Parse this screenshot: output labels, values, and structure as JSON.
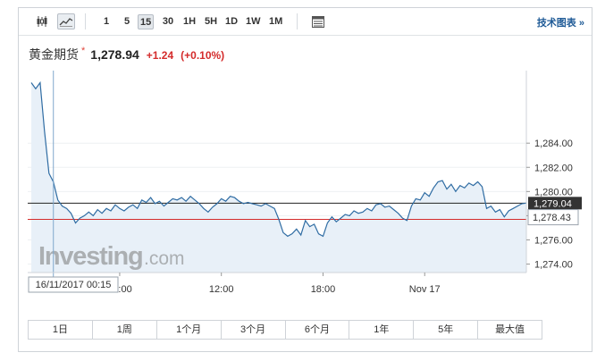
{
  "toolbar": {
    "chart_types": [
      {
        "name": "candlestick-icon",
        "active": false
      },
      {
        "name": "line-chart-icon",
        "active": true
      }
    ],
    "intervals": [
      {
        "label": "1",
        "active": false
      },
      {
        "label": "5",
        "active": false
      },
      {
        "label": "15",
        "active": true
      },
      {
        "label": "30",
        "active": false
      },
      {
        "label": "1H",
        "active": false
      },
      {
        "label": "5H",
        "active": false
      },
      {
        "label": "1D",
        "active": false
      },
      {
        "label": "1W",
        "active": false
      },
      {
        "label": "1M",
        "active": false
      }
    ],
    "settings_icon": "table-icon",
    "tech_charts_label": "技术图表 »"
  },
  "header": {
    "instrument": "黄金期货",
    "star": "*",
    "price": "1,278.94",
    "change": "+1.24",
    "change_pct": "(+0.10%)"
  },
  "watermark": {
    "brand": "Investing",
    "suffix": ".com"
  },
  "colors": {
    "line": "#2f6ca3",
    "area": "#e8f0f8",
    "previous_close": "#d42b2b",
    "current_price": "#222222",
    "crosshair": "#7fa7cc"
  },
  "chart_data": {
    "type": "area",
    "ylim": [
      1273.3,
      1290.0
    ],
    "yticks": [
      "1,274.00",
      "1,276.00",
      "1,278.00",
      "1,280.00",
      "1,282.00",
      "1,284.00"
    ],
    "xtick_labels": [
      "06:00",
      "12:00",
      "18:00",
      "Nov 17"
    ],
    "current_price_label": "1,279.04",
    "crosshair_price_label": "1,278.43",
    "crosshair_time_label": "16/11/2017 00:15",
    "previous_close": 1277.7,
    "current_price": 1279.04,
    "crosshair_price": 1278.43,
    "crosshair_index": 5,
    "xtick_indices": [
      20,
      43,
      66,
      89
    ],
    "values": [
      1289.0,
      1288.5,
      1289.0,
      1285.0,
      1281.5,
      1280.8,
      1279.3,
      1278.8,
      1278.6,
      1278.2,
      1277.4,
      1277.8,
      1278.0,
      1278.3,
      1278.0,
      1278.5,
      1278.2,
      1278.6,
      1278.4,
      1278.9,
      1278.6,
      1278.4,
      1278.7,
      1278.9,
      1278.6,
      1279.3,
      1279.1,
      1279.5,
      1279.0,
      1279.2,
      1278.8,
      1279.1,
      1279.4,
      1279.3,
      1279.5,
      1279.2,
      1279.6,
      1279.3,
      1279.0,
      1278.6,
      1278.3,
      1278.7,
      1279.0,
      1279.4,
      1279.2,
      1279.6,
      1279.5,
      1279.2,
      1279.0,
      1279.1,
      1279.0,
      1278.9,
      1278.8,
      1279.0,
      1278.8,
      1278.6,
      1277.7,
      1276.6,
      1276.3,
      1276.5,
      1276.9,
      1276.4,
      1277.6,
      1277.1,
      1277.3,
      1276.5,
      1276.3,
      1277.4,
      1277.9,
      1277.5,
      1277.8,
      1278.1,
      1278.0,
      1278.4,
      1278.2,
      1278.3,
      1278.6,
      1278.4,
      1278.9,
      1279.0,
      1278.7,
      1278.8,
      1278.5,
      1278.2,
      1277.8,
      1277.6,
      1278.8,
      1279.4,
      1279.3,
      1279.9,
      1279.6,
      1280.3,
      1280.8,
      1280.9,
      1280.2,
      1280.6,
      1280.0,
      1280.5,
      1280.3,
      1280.7,
      1280.5,
      1280.8,
      1280.4,
      1278.6,
      1278.8,
      1278.3,
      1278.5,
      1277.9,
      1278.4,
      1278.6,
      1278.8,
      1279.0,
      1279.04
    ]
  },
  "ranges": [
    "1日",
    "1周",
    "1个月",
    "3个月",
    "6个月",
    "1年",
    "5年",
    "最大值"
  ]
}
